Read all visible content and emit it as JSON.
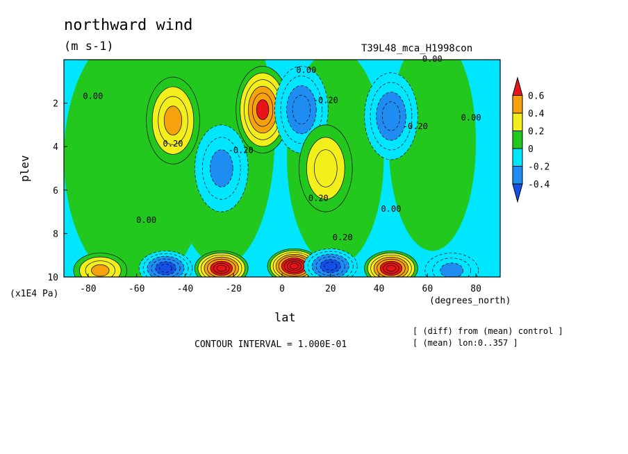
{
  "chart_data": {
    "type": "heatmap",
    "title": "northward wind",
    "units": "(m s-1)",
    "run": "T39L48_mca_H1998con",
    "xlabel": "lat",
    "x_unit": "(degrees_north)",
    "ylabel": "plev",
    "y_unit": "(x1E4 Pa)",
    "xlim": [
      -90,
      90
    ],
    "ylim": [
      10,
      0
    ],
    "x_ticks": [
      -80,
      -60,
      -40,
      -20,
      0,
      20,
      40,
      60,
      80
    ],
    "y_ticks": [
      2,
      4,
      6,
      8,
      10
    ],
    "colorbar": {
      "levels": [
        "0.6",
        "0.4",
        "0.2",
        "0",
        "-0.2",
        "-0.4"
      ],
      "colors": [
        "#e8141a",
        "#f5a20c",
        "#f3ef1c",
        "#22c81e",
        "#00e6ff",
        "#1e8cf0",
        "#1450e6"
      ]
    },
    "contour_interval": "CONTOUR INTERVAL = 1.000E-01",
    "annotations": [
      "[ (diff) from (mean) control ]",
      "[ (mean) lon:0..357 ]"
    ],
    "contour_labels": [
      "0.00",
      "0.20",
      "-0.20"
    ],
    "features": [
      {
        "lat": -45,
        "plev": 2.8,
        "value": 0.4
      },
      {
        "lat": -8,
        "plev": 2.3,
        "value": 0.6
      },
      {
        "lat": -25,
        "plev": 5.0,
        "value": -0.3
      },
      {
        "lat": 8,
        "plev": 2.3,
        "value": -0.4
      },
      {
        "lat": 18,
        "plev": 5.0,
        "value": 0.3
      },
      {
        "lat": 45,
        "plev": 2.6,
        "value": -0.4
      },
      {
        "lat": -75,
        "plev": 9.7,
        "value": 0.4
      },
      {
        "lat": -48,
        "plev": 9.6,
        "value": -0.6
      },
      {
        "lat": -25,
        "plev": 9.6,
        "value": 0.8
      },
      {
        "lat": 5,
        "plev": 9.5,
        "value": 0.9
      },
      {
        "lat": 20,
        "plev": 9.5,
        "value": -0.6
      },
      {
        "lat": 45,
        "plev": 9.6,
        "value": 0.8
      },
      {
        "lat": 70,
        "plev": 9.7,
        "value": -0.3
      }
    ]
  }
}
